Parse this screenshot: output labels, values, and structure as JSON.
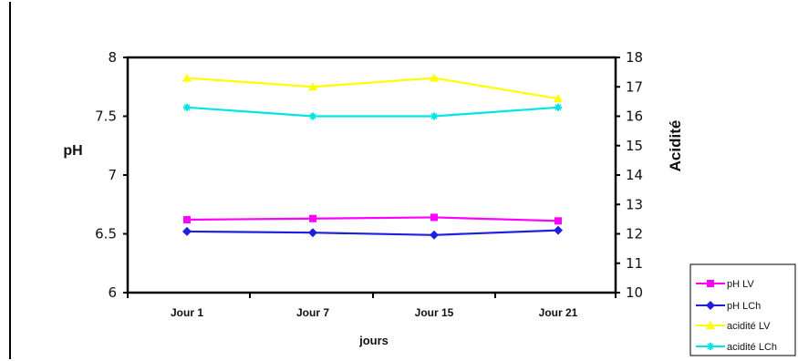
{
  "chart_data": {
    "type": "line",
    "categories": [
      "Jour 1",
      "Jour 7",
      "Jour 15",
      "Jour 21"
    ],
    "xlabel": "jours",
    "ylabel_left": "pH",
    "ylabel_right": "Acidité",
    "ylim_left": [
      6,
      8
    ],
    "ylim_right": [
      10,
      18
    ],
    "yticks_left": [
      "6",
      "6.5",
      "7",
      "7.5",
      "8"
    ],
    "yticks_right": [
      "10",
      "11",
      "12",
      "13",
      "14",
      "15",
      "16",
      "17",
      "18"
    ],
    "grid": false,
    "legend_position": "bottom-right",
    "series": [
      {
        "name": "pH LV",
        "axis": "left",
        "color": "#ff00ff",
        "marker": "square",
        "values": [
          6.62,
          6.63,
          6.64,
          6.61
        ]
      },
      {
        "name": "pH LCh",
        "axis": "left",
        "color": "#1f1fdc",
        "marker": "diamond",
        "values": [
          6.52,
          6.51,
          6.49,
          6.53
        ]
      },
      {
        "name": "acidité LV",
        "axis": "right",
        "color": "#ffff00",
        "marker": "triangle",
        "values": [
          17.3,
          17.0,
          17.3,
          16.6
        ]
      },
      {
        "name": "acidité LCh",
        "axis": "right",
        "color": "#00e5e5",
        "marker": "star",
        "values": [
          16.3,
          16.0,
          16.0,
          16.3
        ]
      }
    ]
  }
}
